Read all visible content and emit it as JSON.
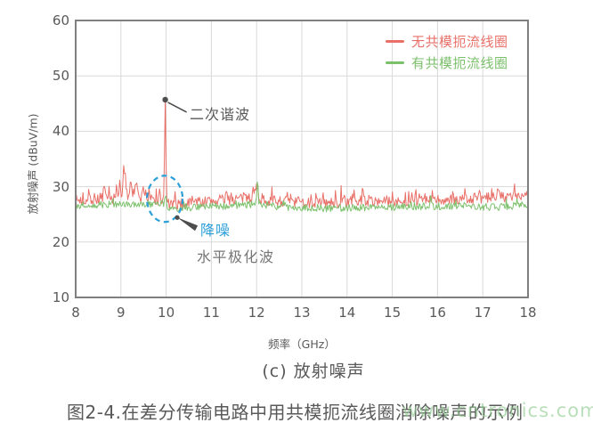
{
  "captions": {
    "subtitle": "(c) 放射噪声",
    "figure": "图2-4.在差分传输电路中用共模扼流线圈消除噪声的示例"
  },
  "watermark": {
    "text": "www.cntronics.com",
    "color": "#8fcc8f"
  },
  "colors": {
    "no_choke_red": "#e87068",
    "with_choke_green": "#7cc06c",
    "annotation_blue": "#2b9fd8",
    "grid": "#d9d9d9",
    "plot_border": "#7f7f7f",
    "text_gray": "#595959"
  },
  "chart_data": {
    "type": "line",
    "title": "",
    "xlabel": "频率（GHz）",
    "ylabel": "放射噪声 (dBuV/m)",
    "xlim": [
      8,
      18
    ],
    "ylim": [
      10,
      60
    ],
    "x_ticks": [
      8,
      9,
      10,
      11,
      12,
      13,
      14,
      15,
      16,
      17,
      18
    ],
    "y_ticks": [
      10,
      20,
      30,
      40,
      50,
      60
    ],
    "grid": true,
    "legend_position": "top-right-inside",
    "series": [
      {
        "name": "无共模扼流线圈",
        "color": "#e87068",
        "seed": 7,
        "step": 0.018,
        "noise_amplitude": 1.0,
        "spike_chance": 0.88,
        "spike_scale": 18,
        "baseline": [
          [
            8,
            27.5
          ],
          [
            8.8,
            27.8
          ],
          [
            9.4,
            27.9
          ],
          [
            9.8,
            27.6
          ],
          [
            10.15,
            26.6
          ],
          [
            10.5,
            27.1
          ],
          [
            11.3,
            27.6
          ],
          [
            11.9,
            28.1
          ],
          [
            12.2,
            27.6
          ],
          [
            13,
            27.1
          ],
          [
            13.6,
            27.0
          ],
          [
            14.4,
            27.5
          ],
          [
            15.2,
            27.3
          ],
          [
            16,
            27.5
          ],
          [
            16.8,
            27.7
          ],
          [
            17.5,
            28.2
          ],
          [
            18,
            27.9
          ]
        ],
        "peaks": [
          [
            9.98,
            18.2,
            0.02
          ],
          [
            9.08,
            4.3,
            0.045
          ],
          [
            9.22,
            3.6,
            0.035
          ],
          [
            9.33,
            2.8,
            0.04
          ],
          [
            8.98,
            2.2,
            0.025
          ],
          [
            9.5,
            1.8,
            0.03
          ],
          [
            8.62,
            1.8,
            0.02
          ],
          [
            12.0,
            2.0,
            0.05
          ],
          [
            11.35,
            1.2,
            0.025
          ],
          [
            13.35,
            0.9,
            0.03
          ],
          [
            14.35,
            1.2,
            0.03
          ],
          [
            15.45,
            1.0,
            0.03
          ],
          [
            16.6,
            1.2,
            0.03
          ],
          [
            17.35,
            1.6,
            0.05
          ],
          [
            17.7,
            1.5,
            0.02
          ]
        ]
      },
      {
        "name": "有共模扼流线圈",
        "color": "#7cc06c",
        "seed": 12,
        "step": 0.018,
        "noise_amplitude": 0.65,
        "spike_chance": 0.92,
        "spike_scale": 10,
        "baseline": [
          [
            8,
            26.5
          ],
          [
            9,
            26.9
          ],
          [
            9.9,
            26.9
          ],
          [
            10.25,
            25.7
          ],
          [
            10.6,
            26.3
          ],
          [
            11.5,
            26.6
          ],
          [
            12,
            26.9
          ],
          [
            12.6,
            26.3
          ],
          [
            13.5,
            26.1
          ],
          [
            14.5,
            26.2
          ],
          [
            15.5,
            26.4
          ],
          [
            16.5,
            26.5
          ],
          [
            17.2,
            26.3
          ],
          [
            18,
            26.7
          ]
        ],
        "peaks": [
          [
            12.02,
            4.3,
            0.018
          ],
          [
            9.98,
            1.9,
            0.025
          ],
          [
            15.85,
            1.5,
            0.015
          ],
          [
            16.62,
            0.9,
            0.02
          ],
          [
            8.55,
            0.7,
            0.02
          ],
          [
            17.75,
            0.8,
            0.02
          ]
        ]
      }
    ],
    "annotations": {
      "second_harmonic": {
        "label": "二次谐波",
        "point_freq_ghz": 9.98,
        "point_value_db": 45.7
      },
      "noise_reduction": {
        "label": "降噪",
        "ellipse_center_freq_ghz": 9.97,
        "ellipse_center_value_db": 27.8
      },
      "polarization": {
        "label": "水平极化波"
      }
    }
  }
}
